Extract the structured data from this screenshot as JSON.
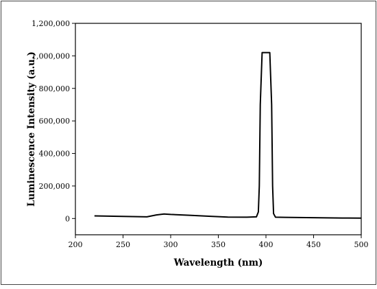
{
  "chart_data": {
    "type": "line",
    "xlabel": "Wavelength (nm)",
    "ylabel": "Luminescence Intensity (a.u.)",
    "xlim": [
      200,
      500
    ],
    "ylim": [
      -100000,
      1200000
    ],
    "x_ticks": [
      200,
      250,
      300,
      350,
      400,
      450,
      500
    ],
    "y_ticks": [
      0,
      200000,
      400000,
      600000,
      800000,
      1000000,
      1200000
    ],
    "x_tick_labels": [
      "200",
      "250",
      "300",
      "350",
      "400",
      "450",
      "500"
    ],
    "y_tick_labels": [
      "0",
      "200,000",
      "400,000",
      "600,000",
      "800,000",
      "1,000,000",
      "1,200,000"
    ],
    "grid": false,
    "legend": "none",
    "line_color": "#000000",
    "series": [
      {
        "x": [
          220,
          250,
          275,
          285,
          293,
          300,
          320,
          340,
          360,
          380,
          390,
          392,
          393,
          394,
          396,
          404,
          406,
          407,
          408,
          410,
          420,
          450,
          480,
          500
        ],
        "y": [
          16000,
          13000,
          10000,
          22000,
          28000,
          25000,
          20000,
          14000,
          9000,
          8000,
          10000,
          40000,
          200000,
          700000,
          1020000,
          1020000,
          700000,
          200000,
          30000,
          8000,
          7000,
          5000,
          3000,
          2000
        ]
      }
    ]
  }
}
